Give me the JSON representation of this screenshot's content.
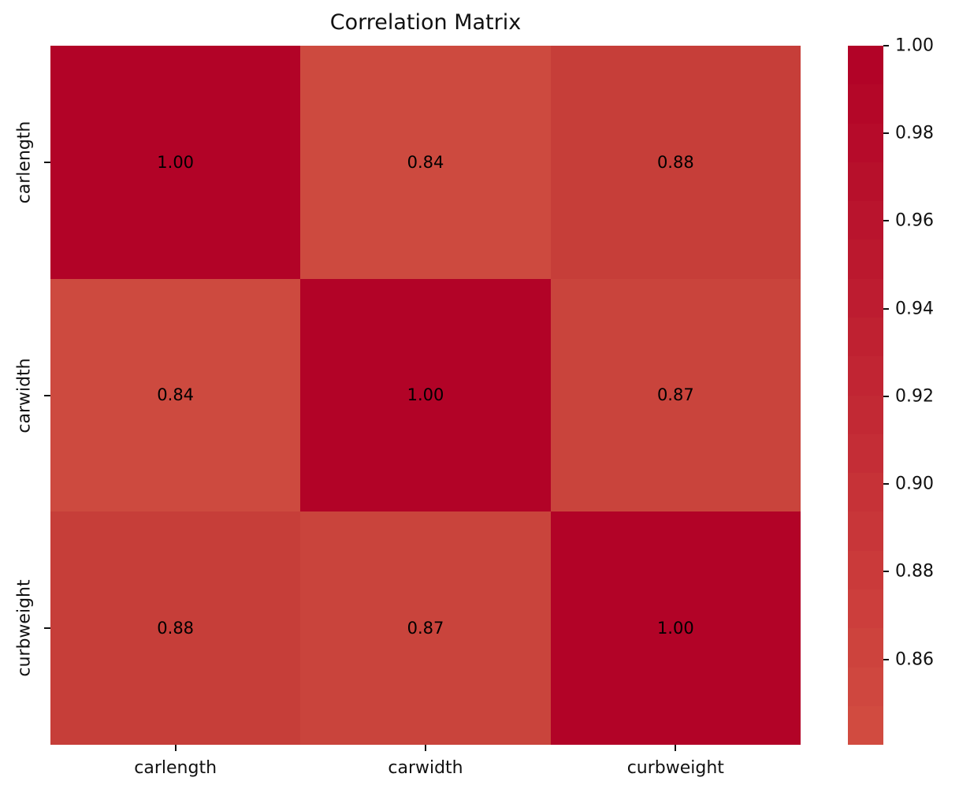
{
  "figure": {
    "background": "#ffffff",
    "text_color": "#111111"
  },
  "chart_data": {
    "type": "heatmap",
    "title": "Correlation Matrix",
    "categories": [
      "carlength",
      "carwidth",
      "curbweight"
    ],
    "x_ticklabels": [
      "carlength",
      "carwidth",
      "curbweight"
    ],
    "y_ticklabels": [
      "carlength",
      "carwidth",
      "curbweight"
    ],
    "matrix": [
      [
        1.0,
        0.84,
        0.88
      ],
      [
        0.84,
        1.0,
        0.87
      ],
      [
        0.88,
        0.87,
        1.0
      ]
    ],
    "cell_labels": [
      [
        "1.00",
        "0.84",
        "0.88"
      ],
      [
        "0.84",
        "1.00",
        "0.87"
      ],
      [
        "0.88",
        "0.87",
        "1.00"
      ]
    ],
    "cell_colors": [
      [
        "#b20327",
        "#cd4a3f",
        "#c63e39"
      ],
      [
        "#cd4a3f",
        "#b20327",
        "#c9443c"
      ],
      [
        "#c63e39",
        "#c9443c",
        "#b20327"
      ]
    ],
    "annotation_color": "#000000",
    "grid": false,
    "legend_position": "colorbar-right",
    "colormap": {
      "name": "red-diverging-upper",
      "top_color": "#b20327",
      "bottom_color": "#d14b40",
      "bands": 18
    },
    "colorbar": {
      "tick_labels": [
        "1.00",
        "0.98",
        "0.96",
        "0.94",
        "0.92",
        "0.90",
        "0.88",
        "0.86"
      ],
      "tick_values": [
        1.0,
        0.98,
        0.96,
        0.94,
        0.92,
        0.9,
        0.88,
        0.86
      ],
      "vmin": 0.8405,
      "vmax": 1.0
    }
  }
}
